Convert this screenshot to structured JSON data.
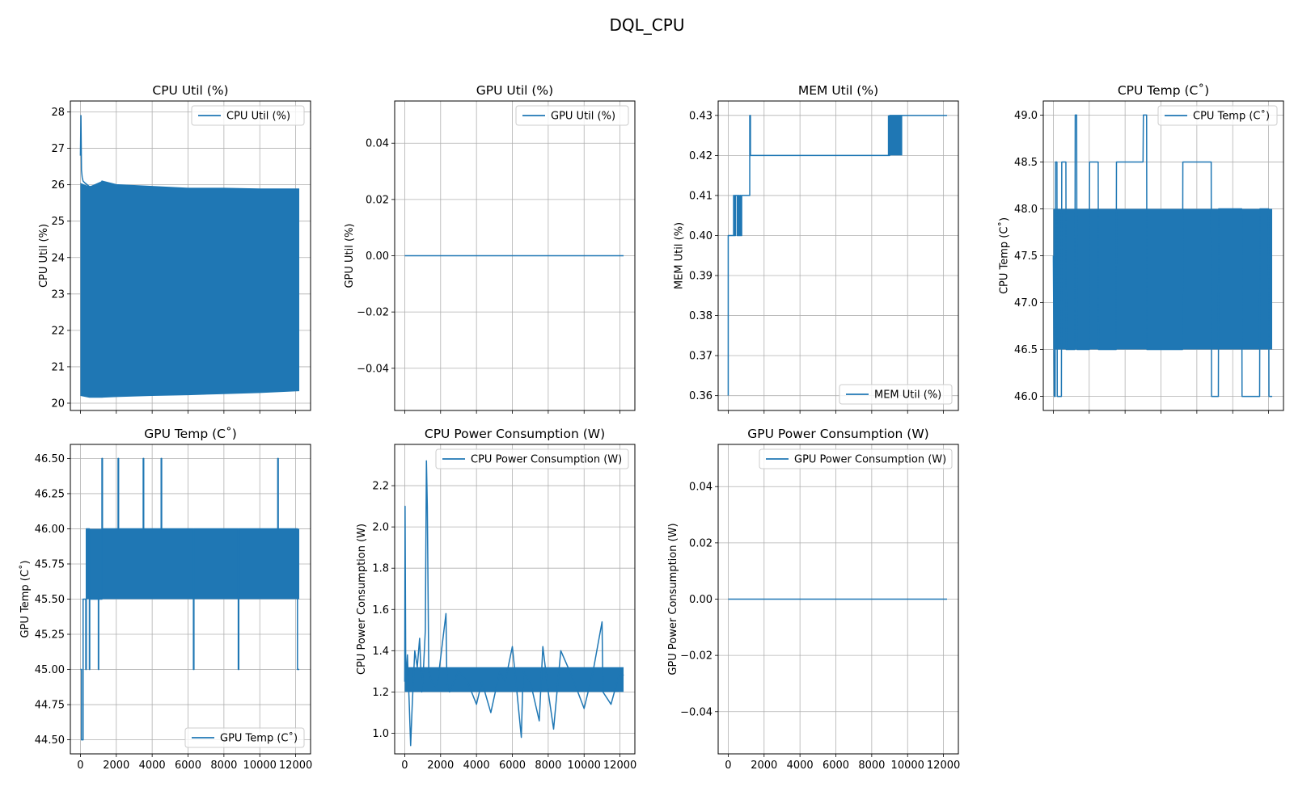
{
  "figure": {
    "title": "DQL_CPU"
  },
  "colors": {
    "series": "#1f77b4",
    "grid": "#b0b0b0"
  },
  "chart_data": [
    {
      "id": "cpu_util",
      "type": "line",
      "title": "CPU Util (%)",
      "ylabel": "CPU Util (%)",
      "legend": "CPU Util (%)",
      "legend_loc": "upper right",
      "xlim": [
        -560,
        12830
      ],
      "ylim": [
        19.8,
        28.3
      ],
      "xticks": [
        0,
        2000,
        4000,
        6000,
        8000,
        10000,
        12000
      ],
      "xticklabels": [],
      "yticks": [
        20,
        21,
        22,
        23,
        24,
        25,
        26,
        27,
        28
      ],
      "yticklabels": [
        "20",
        "21",
        "22",
        "23",
        "24",
        "25",
        "26",
        "27",
        "28"
      ],
      "series": [
        {
          "x": [
            0,
            30,
            60,
            100,
            150,
            250,
            500,
            1000,
            1100,
            1200,
            2000,
            4000,
            6000,
            8000,
            10000,
            12200
          ],
          "y": [
            26.8,
            27.9,
            26.4,
            26.2,
            26.1,
            26.05,
            25.95,
            25.95,
            25.9,
            26.1,
            26.0,
            25.95,
            25.9,
            25.9,
            25.88,
            25.88
          ]
        }
      ],
      "band": {
        "x": [
          0,
          500,
          1200,
          2000,
          4000,
          6000,
          8000,
          10000,
          12200
        ],
        "lower": [
          20.2,
          20.15,
          20.15,
          20.17,
          20.2,
          20.22,
          20.25,
          20.28,
          20.33
        ],
        "upper": [
          26.05,
          25.95,
          26.1,
          26.0,
          25.95,
          25.9,
          25.9,
          25.88,
          25.88
        ]
      }
    },
    {
      "id": "gpu_util",
      "type": "line",
      "title": "GPU Util (%)",
      "ylabel": "GPU Util (%)",
      "legend": "GPU Util (%)",
      "legend_loc": "upper right",
      "xlim": [
        -560,
        12830
      ],
      "ylim": [
        -0.055,
        0.055
      ],
      "xticks": [
        0,
        2000,
        4000,
        6000,
        8000,
        10000,
        12000
      ],
      "xticklabels": [],
      "yticks": [
        -0.04,
        -0.02,
        0.0,
        0.02,
        0.04
      ],
      "yticklabels": [
        "−0.04",
        "−0.02",
        "0.00",
        "0.02",
        "0.04"
      ],
      "series": [
        {
          "x": [
            0,
            12200
          ],
          "y": [
            0,
            0
          ]
        }
      ]
    },
    {
      "id": "mem_util",
      "type": "line",
      "title": "MEM Util (%)",
      "ylabel": "MEM Util (%)",
      "legend": "MEM Util (%)",
      "legend_loc": "lower right",
      "xlim": [
        -560,
        12830
      ],
      "ylim": [
        0.3563,
        0.4336
      ],
      "xticks": [
        0,
        2000,
        4000,
        6000,
        8000,
        10000,
        12000
      ],
      "xticklabels": [],
      "yticks": [
        0.36,
        0.37,
        0.38,
        0.39,
        0.4,
        0.41,
        0.42,
        0.43
      ],
      "yticklabels": [
        "0.36",
        "0.37",
        "0.38",
        "0.39",
        "0.40",
        "0.41",
        "0.42",
        "0.43"
      ],
      "series": [
        {
          "x": [
            0,
            0,
            300,
            300,
            350,
            350,
            400,
            400,
            500,
            500,
            550,
            550,
            600,
            600,
            650,
            650,
            700,
            700,
            750,
            750,
            1200,
            1200,
            1240,
            1240,
            9000,
            9000,
            12200
          ],
          "y": [
            0.36,
            0.4,
            0.4,
            0.41,
            0.41,
            0.4,
            0.4,
            0.41,
            0.41,
            0.4,
            0.4,
            0.41,
            0.41,
            0.4,
            0.4,
            0.41,
            0.41,
            0.4,
            0.4,
            0.41,
            0.41,
            0.43,
            0.43,
            0.42,
            0.42,
            0.43,
            0.43
          ]
        }
      ],
      "band": {
        "x": [
          8900,
          9700
        ],
        "lower": [
          0.42,
          0.42
        ],
        "upper": [
          0.43,
          0.43
        ]
      }
    },
    {
      "id": "cpu_temp",
      "type": "line",
      "title": "CPU Temp (C˚)",
      "ylabel": "CPU Temp (C˚)",
      "legend": "CPU Temp (C˚)",
      "legend_loc": "upper right",
      "xlim": [
        -560,
        12830
      ],
      "ylim": [
        45.85,
        49.15
      ],
      "xticks": [
        0,
        2000,
        4000,
        6000,
        8000,
        10000,
        12000
      ],
      "xticklabels": [],
      "yticks": [
        46.0,
        46.5,
        47.0,
        47.5,
        48.0,
        48.5,
        49.0
      ],
      "yticklabels": [
        "46.0",
        "46.5",
        "47.0",
        "47.5",
        "48.0",
        "48.5",
        "49.0"
      ],
      "series": [
        {
          "x": [
            0,
            50,
            100,
            120,
            200,
            220,
            450,
            470,
            700,
            720,
            1200,
            1220,
            1300,
            1320,
            2000,
            2020,
            2500,
            2520,
            3500,
            3520,
            5000,
            5020,
            5200,
            5220,
            7200,
            7220,
            8800,
            8820,
            9200,
            9220,
            10500,
            10520,
            11500,
            11520,
            12000,
            12020,
            12200
          ],
          "y": [
            47.5,
            46.0,
            46.0,
            48.5,
            48.5,
            46.0,
            46.0,
            48.5,
            48.5,
            46.5,
            46.5,
            49.0,
            49.0,
            46.5,
            46.5,
            48.5,
            48.5,
            46.5,
            46.5,
            48.5,
            48.5,
            49.0,
            49.0,
            46.5,
            46.5,
            48.5,
            48.5,
            46.0,
            46.0,
            48.0,
            48.0,
            46.0,
            46.0,
            48.0,
            48.0,
            46.0,
            46.0
          ]
        }
      ],
      "band": {
        "x": [
          0,
          12200
        ],
        "lower": [
          46.5,
          46.5
        ],
        "upper": [
          48.0,
          48.0
        ]
      }
    },
    {
      "id": "gpu_temp",
      "type": "line",
      "title": "GPU Temp (C˚)",
      "ylabel": "GPU Temp (C˚)",
      "legend": "GPU Temp (C˚)",
      "legend_loc": "lower right",
      "xlim": [
        -560,
        12830
      ],
      "ylim": [
        44.4,
        46.6
      ],
      "xticks": [
        0,
        2000,
        4000,
        6000,
        8000,
        10000,
        12000
      ],
      "xticklabels": [
        "0",
        "2000",
        "4000",
        "6000",
        "8000",
        "10000",
        "12000"
      ],
      "yticks": [
        44.5,
        44.75,
        45.0,
        45.25,
        45.5,
        45.75,
        46.0,
        46.25,
        46.5
      ],
      "yticklabels": [
        "44.50",
        "44.75",
        "45.00",
        "45.25",
        "45.50",
        "45.75",
        "46.00",
        "46.25",
        "46.50"
      ],
      "series": [
        {
          "x": [
            0,
            60,
            60,
            150,
            150,
            300,
            300,
            330,
            330,
            500,
            500,
            520,
            520,
            1000,
            1000,
            1020,
            1020,
            1200,
            1200,
            1230,
            1230,
            2100,
            2100,
            2130,
            2130,
            3500,
            3500,
            3530,
            3530,
            4500,
            4500,
            4530,
            4530,
            6300,
            6300,
            6330,
            6330,
            8800,
            8800,
            8830,
            8830,
            11000,
            11000,
            11030,
            11030,
            12100,
            12100,
            12200
          ],
          "y": [
            45.0,
            45.0,
            44.5,
            44.5,
            45.5,
            45.5,
            45.0,
            45.0,
            46.0,
            46.0,
            45.0,
            45.0,
            45.5,
            45.5,
            45.0,
            45.0,
            45.5,
            45.5,
            46.5,
            46.5,
            46.0,
            46.0,
            46.5,
            46.5,
            46.0,
            46.0,
            46.5,
            46.5,
            46.0,
            46.0,
            46.5,
            46.5,
            46.0,
            46.0,
            45.0,
            45.0,
            46.0,
            46.0,
            45.0,
            45.0,
            46.0,
            46.0,
            46.5,
            46.5,
            46.0,
            46.0,
            45.0,
            45.0
          ]
        }
      ],
      "band": {
        "x": [
          330,
          12200
        ],
        "lower": [
          45.5,
          45.5
        ],
        "upper": [
          46.0,
          46.0
        ]
      }
    },
    {
      "id": "cpu_power",
      "type": "line",
      "title": "CPU Power Consumption (W)",
      "ylabel": "CPU Power Consumption (W)",
      "legend": "CPU Power Consumption (W)",
      "legend_loc": "upper right",
      "xlim": [
        -560,
        12830
      ],
      "ylim": [
        0.9,
        2.4
      ],
      "xticks": [
        0,
        2000,
        4000,
        6000,
        8000,
        10000,
        12000
      ],
      "xticklabels": [
        "0",
        "2000",
        "4000",
        "6000",
        "8000",
        "10000",
        "12000"
      ],
      "yticks": [
        1.0,
        1.2,
        1.4,
        1.6,
        1.8,
        2.0,
        2.2
      ],
      "yticklabels": [
        "1.0",
        "1.2",
        "1.4",
        "1.6",
        "1.8",
        "2.0",
        "2.2"
      ],
      "series": [
        {
          "x": [
            0,
            20,
            60,
            150,
            250,
            330,
            420,
            560,
            700,
            830,
            950,
            1050,
            1150,
            1210,
            1260,
            1340,
            1500,
            1800,
            2300,
            2350,
            2500,
            3000,
            3500,
            4000,
            4300,
            4800,
            5300,
            5600,
            6000,
            6200,
            6500,
            6600,
            7000,
            7500,
            7700,
            8000,
            8300,
            8700,
            9300,
            10000,
            10500,
            11000,
            11050,
            11500,
            12000,
            12200
          ],
          "y": [
            1.25,
            2.1,
            1.25,
            1.38,
            1.15,
            0.94,
            1.14,
            1.4,
            1.32,
            1.46,
            1.2,
            1.32,
            1.5,
            2.32,
            2.1,
            1.3,
            1.25,
            1.22,
            1.58,
            1.25,
            1.2,
            1.3,
            1.25,
            1.14,
            1.25,
            1.1,
            1.3,
            1.25,
            1.42,
            1.25,
            0.98,
            1.3,
            1.25,
            1.06,
            1.42,
            1.2,
            1.02,
            1.4,
            1.28,
            1.12,
            1.3,
            1.54,
            1.2,
            1.14,
            1.3,
            1.28
          ]
        }
      ],
      "band": {
        "x": [
          0,
          12200
        ],
        "lower": [
          1.2,
          1.2
        ],
        "upper": [
          1.32,
          1.32
        ]
      }
    },
    {
      "id": "gpu_power",
      "type": "line",
      "title": "GPU Power Consumption (W)",
      "ylabel": "GPU Power Consumption (W)",
      "legend": "GPU Power Consumption (W)",
      "legend_loc": "upper right",
      "xlim": [
        -560,
        12830
      ],
      "ylim": [
        -0.055,
        0.055
      ],
      "xticks": [
        0,
        2000,
        4000,
        6000,
        8000,
        10000,
        12000
      ],
      "xticklabels": [
        "0",
        "2000",
        "4000",
        "6000",
        "8000",
        "10000",
        "12000"
      ],
      "yticks": [
        -0.04,
        -0.02,
        0.0,
        0.02,
        0.04
      ],
      "yticklabels": [
        "−0.04",
        "−0.02",
        "0.00",
        "0.02",
        "0.04"
      ],
      "series": [
        {
          "x": [
            0,
            12200
          ],
          "y": [
            0,
            0
          ]
        }
      ]
    }
  ]
}
